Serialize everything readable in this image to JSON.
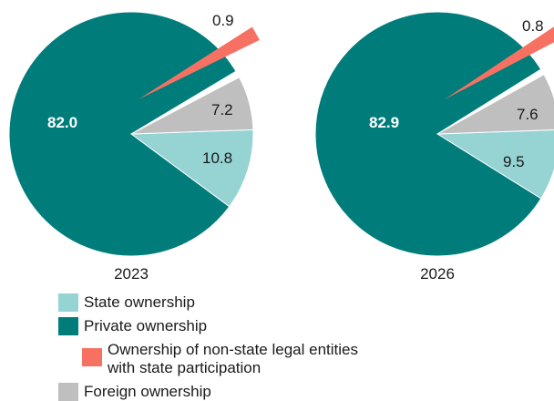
{
  "chart_data": {
    "type": "pie",
    "legend_position": "bottom",
    "series_defs": [
      {
        "key": "state",
        "name": "State ownership",
        "color": "#96d3d3"
      },
      {
        "key": "private",
        "name": "Private ownership",
        "color": "#007d7b"
      },
      {
        "key": "nonstate",
        "name": "Ownership of non-state legal entities with state participation",
        "color": "#f77162"
      },
      {
        "key": "foreign",
        "name": "Foreign ownership",
        "color": "#bfbfbf"
      }
    ],
    "charts": [
      {
        "title": "2023",
        "slices": [
          {
            "key": "state",
            "value": 10.8,
            "label": "10.8"
          },
          {
            "key": "private",
            "value": 82.0,
            "label": "82.0"
          },
          {
            "key": "nonstate",
            "value": 0.9,
            "label": "0.9"
          },
          {
            "key": "foreign",
            "value": 7.2,
            "label": "7.2"
          }
        ]
      },
      {
        "title": "2026",
        "slices": [
          {
            "key": "state",
            "value": 9.5,
            "label": "9.5"
          },
          {
            "key": "private",
            "value": 82.9,
            "label": "82.9"
          },
          {
            "key": "nonstate",
            "value": 0.8,
            "label": "0.8"
          },
          {
            "key": "foreign",
            "value": 7.6,
            "label": "7.6"
          }
        ]
      }
    ]
  },
  "legend": {
    "items": [
      {
        "lines": [
          "State ownership"
        ],
        "key": "state"
      },
      {
        "lines": [
          "Private ownership"
        ],
        "key": "private"
      },
      {
        "lines": [
          "Ownership of non-state legal entities",
          "with state participation"
        ],
        "key": "nonstate"
      },
      {
        "lines": [
          "Foreign ownership"
        ],
        "key": "foreign"
      }
    ]
  }
}
